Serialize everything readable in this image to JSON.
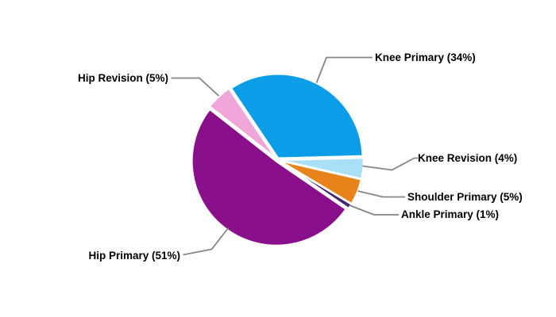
{
  "chart_data": {
    "type": "pie",
    "title": "",
    "legend_position": "callouts",
    "background_color": "#ffffff",
    "leader_line_color": "#858585",
    "label_text_color": "#000000",
    "start_angle_deg": 1.5,
    "direction": "counterclockwise",
    "slices": [
      {
        "label": "Knee Primary",
        "value_pct": 34,
        "color": "#0C9DE8",
        "callout": "Knee Primary (34%)"
      },
      {
        "label": "Hip Revision",
        "value_pct": 5,
        "color": "#F0A6D8",
        "callout": "Hip Revision (5%)"
      },
      {
        "label": "Hip Primary",
        "value_pct": 51,
        "color": "#8A0F8A",
        "callout": "Hip Primary (51%)"
      },
      {
        "label": "Ankle Primary",
        "value_pct": 1,
        "color": "#472573",
        "callout": "Ankle Primary (1%)"
      },
      {
        "label": "Shoulder Primary",
        "value_pct": 5,
        "color": "#E8821A",
        "callout": "Shoulder Primary (5%)"
      },
      {
        "label": "Knee Revision",
        "value_pct": 4,
        "color": "#A9E0F7",
        "callout": "Knee Revision (4%)"
      }
    ]
  }
}
